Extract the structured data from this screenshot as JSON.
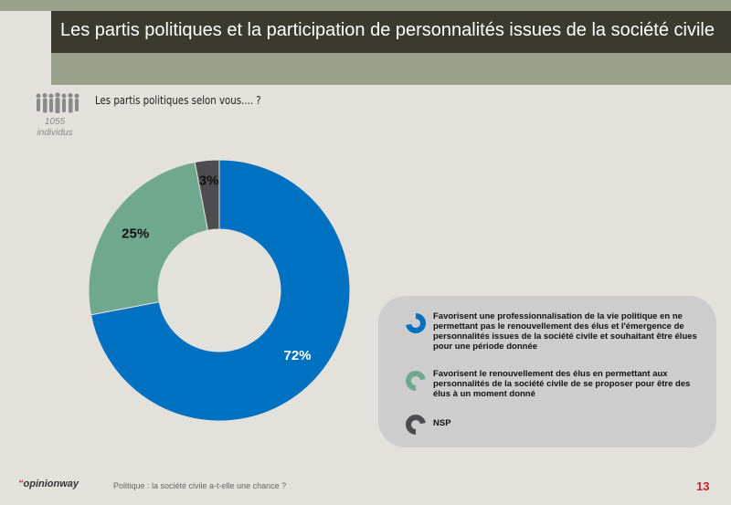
{
  "header": {
    "title": "Les partis politiques et la participation de personnalités issues de la société civile"
  },
  "sample": {
    "count_line1": "1055",
    "count_line2": "individus"
  },
  "question": "Les partis politiques selon vous.... ?",
  "chart_data": {
    "type": "pie",
    "donut": true,
    "slices": [
      {
        "label": "Favorisent une professionnalisation de la vie politique en ne permettant pas le renouvellement des élus et l'émergence de personnalités issues de la société civile et souhaitant être élues pour une période donnée",
        "value": 72,
        "value_label": "72%",
        "color": "#0070c0",
        "text_color": "#ffffff"
      },
      {
        "label": "Favorisent le renouvellement des élus en permettant aux personnalités de la société civile de se proposer pour être des élus à un moment donné",
        "value": 25,
        "value_label": "25%",
        "color": "#6fa88f",
        "text_color": "#111111"
      },
      {
        "label": "NSP",
        "value": 3,
        "value_label": "3%",
        "color": "#4d4d4f",
        "text_color": "#111111"
      }
    ],
    "legend_position": "right"
  },
  "footer": {
    "logo_mark": "“",
    "logo_text": "opinionway",
    "caption": "Politique : la société civile a-t-elle une chance ?",
    "page": "13"
  }
}
